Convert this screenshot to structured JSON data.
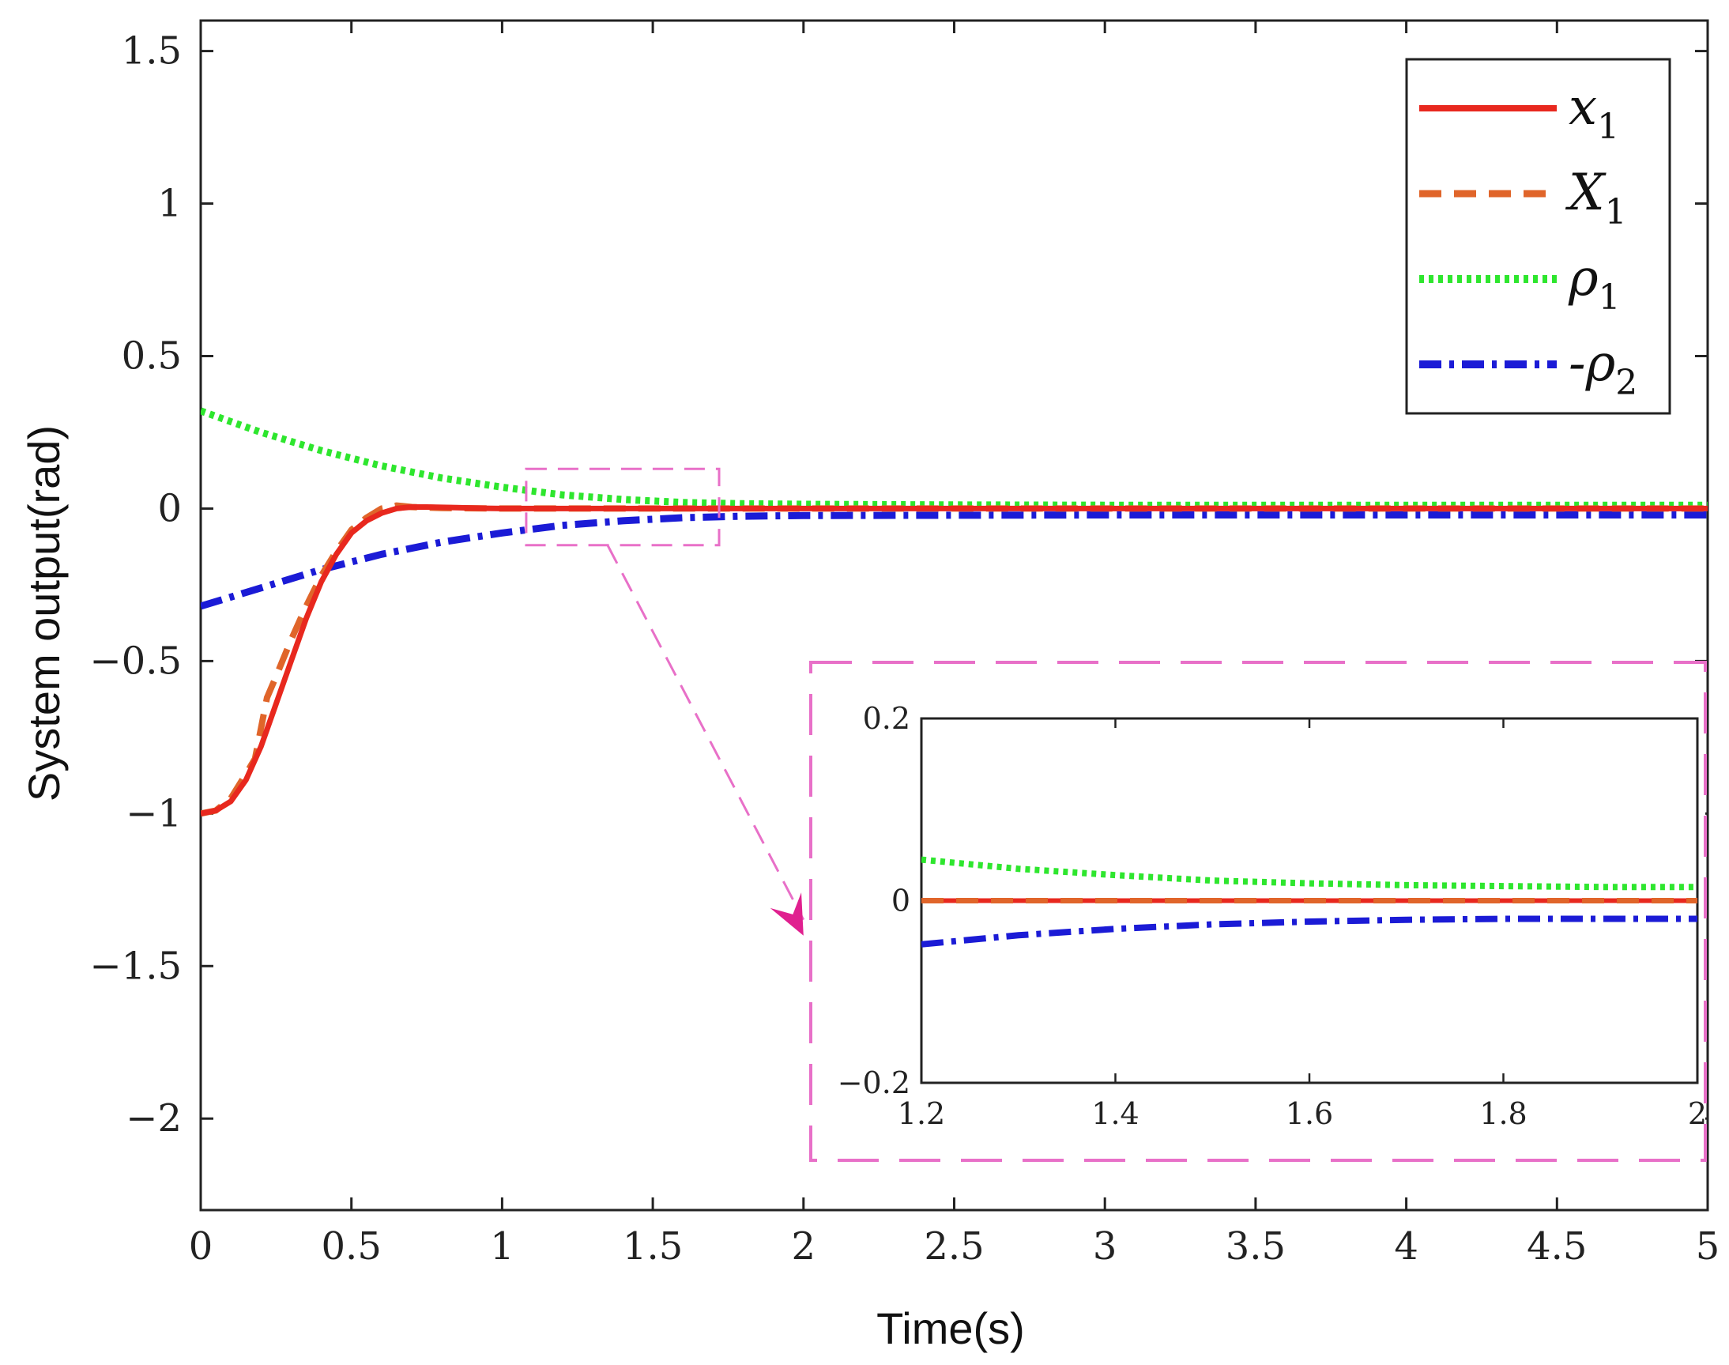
{
  "chart_data": [
    {
      "type": "line",
      "xlabel": "Time(s)",
      "ylabel": "System output(rad)",
      "xlim": [
        0,
        5
      ],
      "ylim": [
        -2.3,
        1.6
      ],
      "x_ticks": [
        0,
        0.5,
        1,
        1.5,
        2,
        2.5,
        3,
        3.5,
        4,
        4.5,
        5
      ],
      "x_tick_labels": [
        "0",
        "0.5",
        "1",
        "1.5",
        "2",
        "2.5",
        "3",
        "3.5",
        "4",
        "4.5",
        "5"
      ],
      "y_ticks": [
        1.5,
        1,
        0.5,
        0,
        -0.5,
        -1,
        -1.5,
        -2
      ],
      "y_tick_labels": [
        "1.5",
        "1",
        "0.5",
        "0",
        "−0.5",
        "−1",
        "−1.5",
        "−2"
      ],
      "grid": false,
      "legend_position": "top-right",
      "series": [
        {
          "name": "x_1",
          "legend_main": "x",
          "legend_sub": "1",
          "style": "solid",
          "color": "#e8281e",
          "x": [
            0,
            0.05,
            0.1,
            0.15,
            0.2,
            0.25,
            0.3,
            0.35,
            0.4,
            0.45,
            0.5,
            0.55,
            0.6,
            0.65,
            0.7,
            0.75,
            0.8,
            0.85,
            0.9,
            0.95,
            1.0,
            1.1,
            1.2,
            1.5,
            2.0,
            3.0,
            4.0,
            5.0
          ],
          "y": [
            -1.0,
            -0.99,
            -0.96,
            -0.89,
            -0.78,
            -0.64,
            -0.5,
            -0.36,
            -0.24,
            -0.15,
            -0.08,
            -0.04,
            -0.015,
            0.0,
            0.005,
            0.005,
            0.004,
            0.003,
            0.002,
            0.001,
            0.0,
            0.0,
            0.0,
            0.0,
            0.0,
            0.0,
            0.0,
            0.0
          ]
        },
        {
          "name": "X_1",
          "legend_main": "X",
          "legend_sub": "1",
          "style": "dashed",
          "color": "#e0652a",
          "x": [
            0,
            0.05,
            0.1,
            0.15,
            0.18,
            0.2,
            0.22,
            0.25,
            0.3,
            0.35,
            0.4,
            0.45,
            0.5,
            0.55,
            0.6,
            0.65,
            0.7,
            0.8,
            1.0,
            1.5,
            2.0,
            3.0,
            4.0,
            5.0
          ],
          "y": [
            -1.0,
            -0.99,
            -0.95,
            -0.87,
            -0.82,
            -0.72,
            -0.62,
            -0.55,
            -0.43,
            -0.32,
            -0.22,
            -0.14,
            -0.07,
            -0.03,
            0.0,
            0.01,
            0.005,
            0.002,
            0.0,
            0.0,
            0.0,
            0.0,
            0.0,
            0.0
          ]
        },
        {
          "name": "rho_1",
          "legend_main": "ρ",
          "legend_sub": "1",
          "style": "dotted",
          "color": "#2ee62e",
          "x": [
            0,
            0.2,
            0.4,
            0.6,
            0.8,
            1.0,
            1.2,
            1.4,
            1.6,
            1.8,
            2.0,
            2.5,
            3.0,
            4.0,
            5.0
          ],
          "y": [
            0.32,
            0.25,
            0.19,
            0.14,
            0.1,
            0.07,
            0.045,
            0.03,
            0.02,
            0.016,
            0.014,
            0.012,
            0.011,
            0.011,
            0.011
          ]
        },
        {
          "name": "-rho_2",
          "legend_main": "-ρ",
          "legend_sub": "2",
          "style": "dashdot",
          "color": "#1b1bd6",
          "x": [
            0,
            0.2,
            0.4,
            0.6,
            0.8,
            1.0,
            1.2,
            1.4,
            1.6,
            1.8,
            2.0,
            2.5,
            3.0,
            4.0,
            5.0
          ],
          "y": [
            -0.32,
            -0.26,
            -0.2,
            -0.15,
            -0.11,
            -0.08,
            -0.055,
            -0.04,
            -0.03,
            -0.025,
            -0.023,
            -0.022,
            -0.021,
            -0.021,
            -0.021
          ]
        }
      ],
      "annotations": [
        {
          "type": "zoom-box",
          "x_range": [
            1.08,
            1.72
          ],
          "y_range": [
            -0.12,
            0.13
          ]
        },
        {
          "type": "arrow",
          "from": [
            1.35,
            -0.12
          ],
          "to": [
            2.0,
            -1.4
          ]
        }
      ]
    },
    {
      "type": "line",
      "inset": true,
      "xlim": [
        1.2,
        2.0
      ],
      "ylim": [
        -0.2,
        0.2
      ],
      "x_ticks": [
        1.2,
        1.4,
        1.6,
        1.8,
        2.0
      ],
      "x_tick_labels": [
        "1.2",
        "1.4",
        "1.6",
        "1.8",
        "2"
      ],
      "y_ticks": [
        0.2,
        0,
        -0.2
      ],
      "y_tick_labels": [
        "0.2",
        "0",
        "−0.2"
      ],
      "series": [
        {
          "name": "x_1",
          "style": "solid",
          "color": "#e8281e",
          "x": [
            1.2,
            2.0
          ],
          "y": [
            0.0,
            0.0
          ]
        },
        {
          "name": "X_1",
          "style": "dashed",
          "color": "#e0652a",
          "x": [
            1.2,
            2.0
          ],
          "y": [
            0.0,
            0.0
          ]
        },
        {
          "name": "rho_1",
          "style": "dotted",
          "color": "#2ee62e",
          "x": [
            1.2,
            1.3,
            1.4,
            1.5,
            1.6,
            1.7,
            1.8,
            1.9,
            2.0
          ],
          "y": [
            0.045,
            0.035,
            0.028,
            0.022,
            0.019,
            0.017,
            0.016,
            0.015,
            0.015
          ]
        },
        {
          "name": "-rho_2",
          "style": "dashdot",
          "color": "#1b1bd6",
          "x": [
            1.2,
            1.3,
            1.4,
            1.5,
            1.6,
            1.7,
            1.8,
            1.9,
            2.0
          ],
          "y": [
            -0.048,
            -0.038,
            -0.031,
            -0.026,
            -0.023,
            -0.021,
            -0.02,
            -0.02,
            -0.02
          ]
        }
      ]
    }
  ]
}
